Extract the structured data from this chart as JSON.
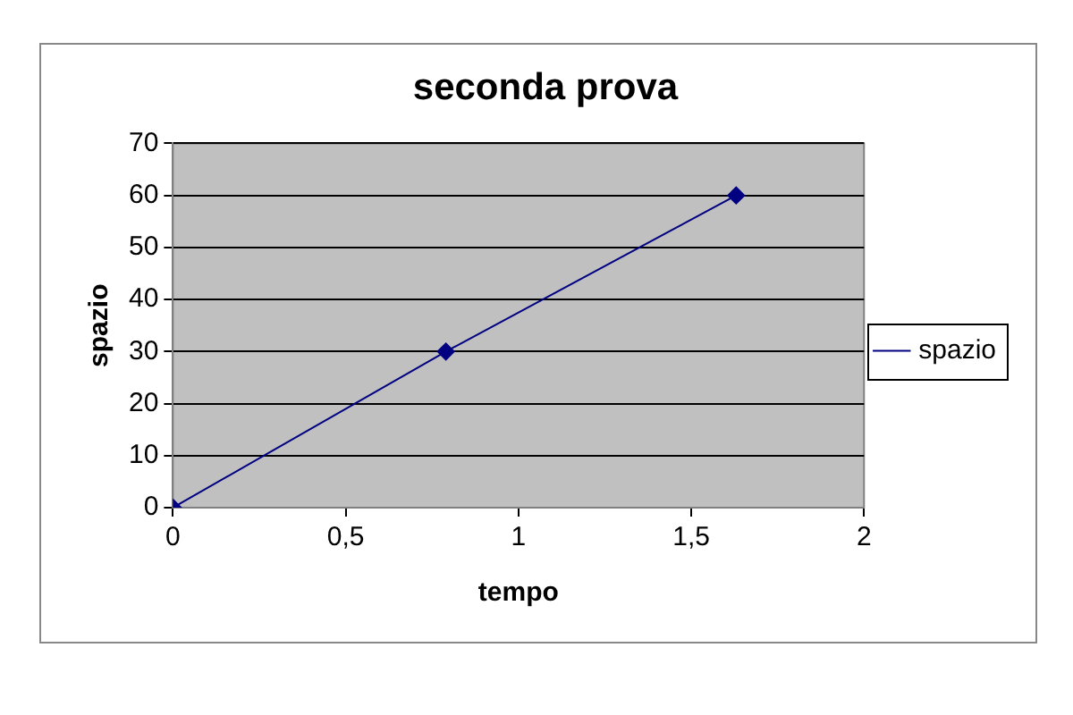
{
  "chart_data": {
    "type": "line",
    "title": "seconda prova",
    "xlabel": "tempo",
    "ylabel": "spazio",
    "x": [
      0,
      0.79,
      1.63
    ],
    "series": [
      {
        "name": "spazio",
        "color": "#000080",
        "values": [
          0,
          30,
          60
        ]
      }
    ],
    "xlim": [
      0,
      2
    ],
    "xticks": [
      0,
      {
        "value": 0.5,
        "label": "0,5"
      },
      1,
      {
        "value": 1.5,
        "label": "1,5"
      },
      2
    ],
    "ylim": [
      0,
      70
    ],
    "yticks": [
      0,
      10,
      20,
      30,
      40,
      50,
      60,
      70
    ],
    "grid": "y",
    "legend": "right",
    "marker": "diamond",
    "line_style": "solid"
  }
}
